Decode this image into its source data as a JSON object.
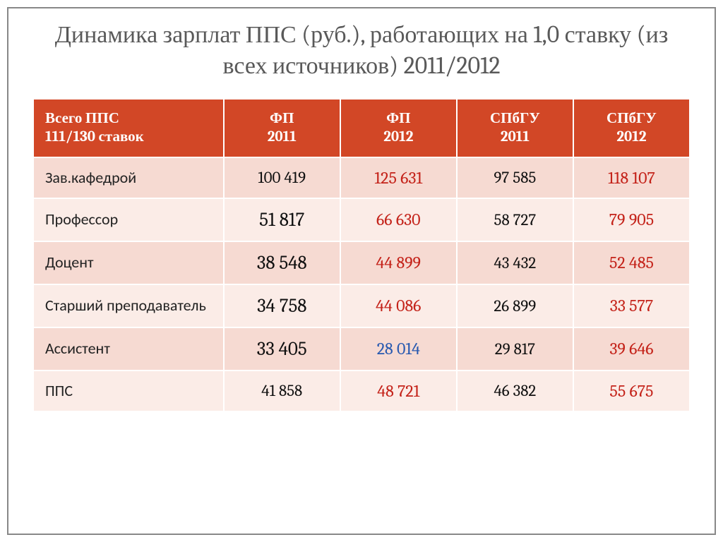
{
  "title": "Динамика зарплат ППС (руб.), работающих на 1,0 ставку  (из всех источников) 2011/2012",
  "header": {
    "label_line1": "Всего ППС",
    "label_line2": "111/130 ставок",
    "col1_line1": "ФП",
    "col1_line2": "2011",
    "col2_line1": "ФП",
    "col2_line2": "2012",
    "col3_line1": "СПбГУ",
    "col3_line2": "2011",
    "col4_line1": "СПбГУ",
    "col4_line2": "2012"
  },
  "rows": [
    {
      "label": "Зав.кафедрой",
      "c1": {
        "v": "100 419",
        "cls": "small"
      },
      "c2": {
        "v": "125 631",
        "cls": "red"
      },
      "c3": {
        "v": "97 585",
        "cls": "small"
      },
      "c4": {
        "v": "118 107",
        "cls": "red"
      }
    },
    {
      "label": "Профессор",
      "c1": {
        "v": "51 817",
        "cls": ""
      },
      "c2": {
        "v": "66 630",
        "cls": "red"
      },
      "c3": {
        "v": "58 727",
        "cls": "small"
      },
      "c4": {
        "v": "79 905",
        "cls": "red"
      }
    },
    {
      "label": "Доцент",
      "c1": {
        "v": "38 548",
        "cls": ""
      },
      "c2": {
        "v": "44 899",
        "cls": "red"
      },
      "c3": {
        "v": "43 432",
        "cls": "small"
      },
      "c4": {
        "v": "52 485",
        "cls": "red"
      }
    },
    {
      "label": "Старший преподаватель",
      "c1": {
        "v": "34 758",
        "cls": ""
      },
      "c2": {
        "v": "44 086",
        "cls": "red"
      },
      "c3": {
        "v": "26 899",
        "cls": "small"
      },
      "c4": {
        "v": "33 577",
        "cls": "red"
      }
    },
    {
      "label": "Ассистент",
      "c1": {
        "v": "33 405",
        "cls": ""
      },
      "c2": {
        "v": "28 014",
        "cls": "blue"
      },
      "c3": {
        "v": "29 817",
        "cls": "small"
      },
      "c4": {
        "v": "39 646",
        "cls": "red"
      }
    },
    {
      "label": " ППС",
      "c1": {
        "v": "41 858",
        "cls": "small"
      },
      "c2": {
        "v": "48 721",
        "cls": "red"
      },
      "c3": {
        "v": "46 382",
        "cls": "small"
      },
      "c4": {
        "v": "55 675",
        "cls": "red"
      }
    }
  ],
  "style": {
    "header_bg": "#d24726",
    "header_fg": "#ffffff",
    "row_odd_bg": "#f6dad2",
    "row_even_bg": "#fbece7",
    "title_color": "#595959",
    "red": "#c4231a",
    "blue": "#2859b0",
    "title_fontsize": 34,
    "header_fontsize": 21,
    "label_fontsize": 22,
    "num_fontsize": 27,
    "num_small_fontsize": 23,
    "num_highlight_fontsize": 24
  }
}
